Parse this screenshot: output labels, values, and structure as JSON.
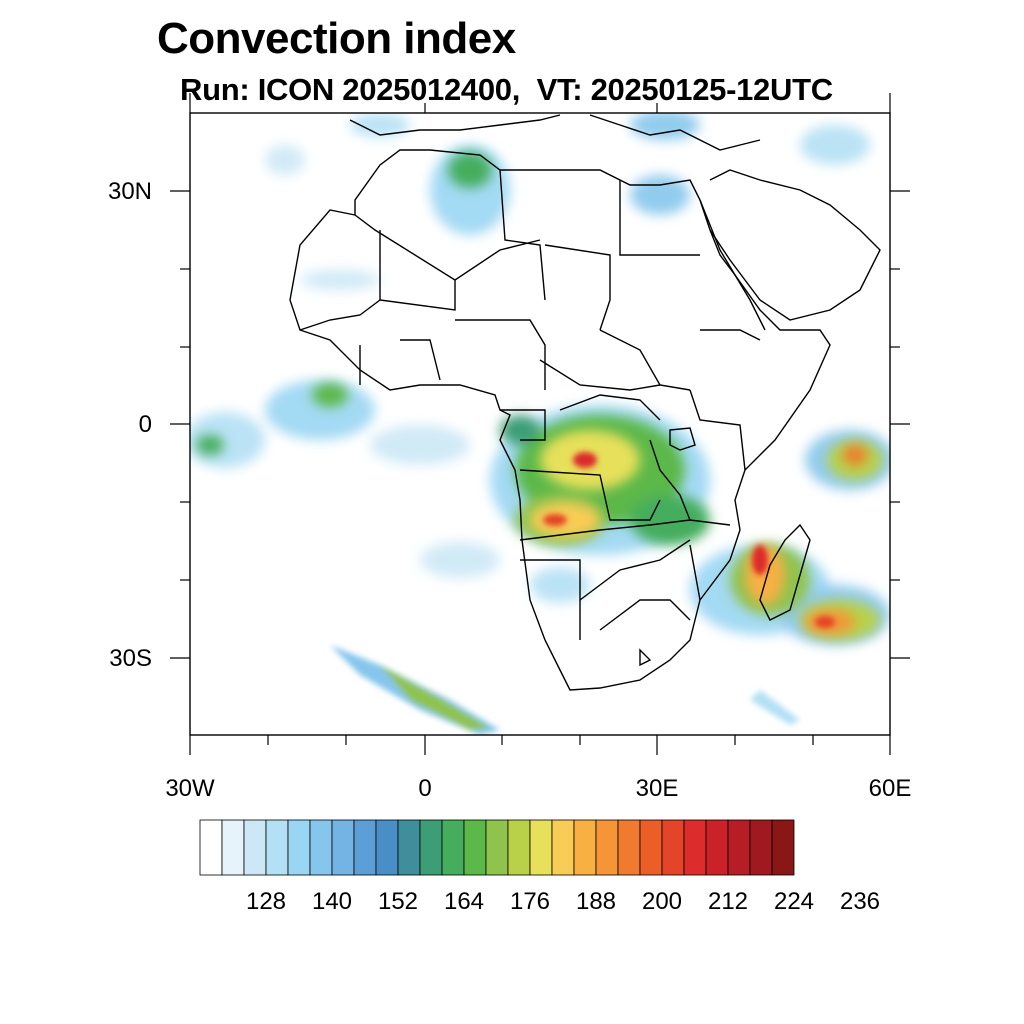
{
  "header": {
    "title": "Convection index",
    "subtitle": "Run: ICON 2025012400,  VT: 20250125-12UTC"
  },
  "map": {
    "lat_labels": [
      "30N",
      "0",
      "30S"
    ],
    "lon_labels": [
      "30W",
      "0",
      "30E",
      "60E"
    ]
  },
  "colorbar": {
    "labels": [
      "128",
      "140",
      "152",
      "164",
      "176",
      "188",
      "200",
      "212",
      "224",
      "236"
    ],
    "colors": [
      "#ffffff",
      "#e6f3fb",
      "#cce8f6",
      "#b3e0f4",
      "#9ad6f3",
      "#86c6ec",
      "#74b4e4",
      "#5c9fd6",
      "#4a8ec7",
      "#3e8f9b",
      "#3d9e76",
      "#45ad5d",
      "#5cb849",
      "#8fc34e",
      "#b8d148",
      "#e7e05a",
      "#f8cc55",
      "#f8b043",
      "#f59538",
      "#f07a2e",
      "#eb5e28",
      "#e44428",
      "#dd2c2b",
      "#cb2229",
      "#b71d25",
      "#a01920",
      "#8a1616"
    ]
  },
  "colors": {
    "border": "#000000",
    "frame": "#000000"
  }
}
